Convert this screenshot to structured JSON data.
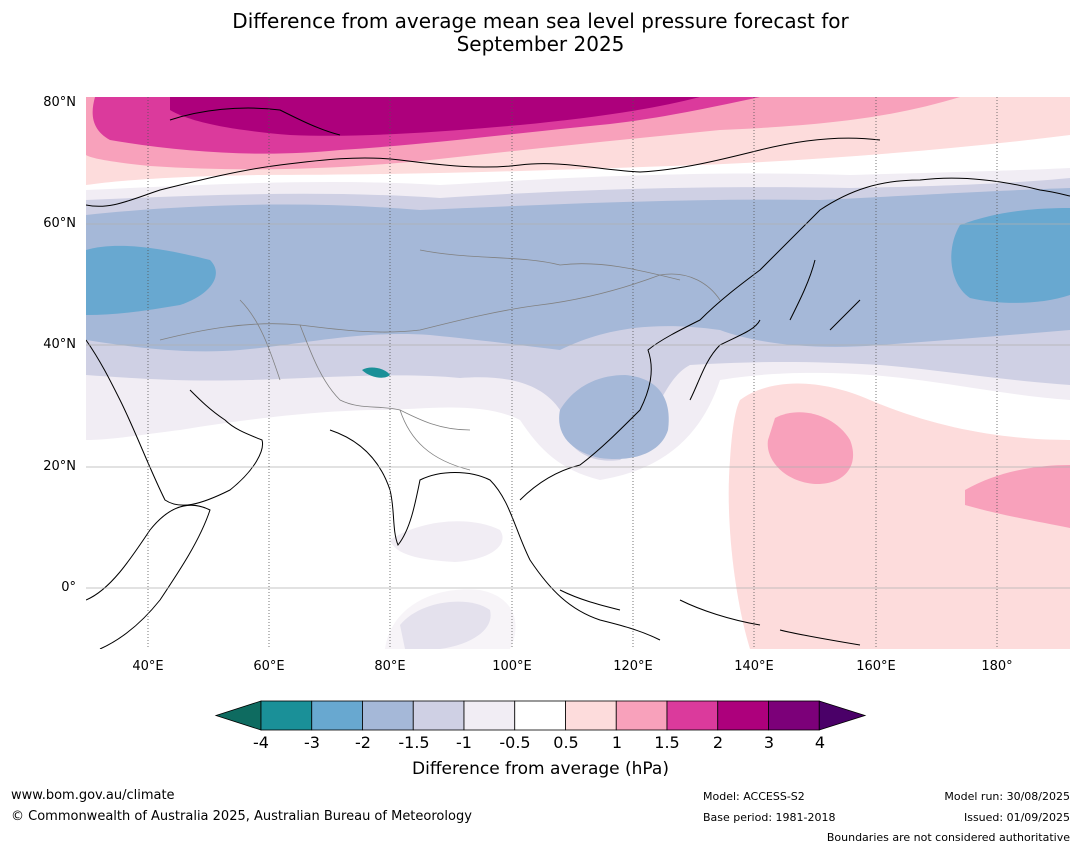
{
  "title_line1": "Difference from average mean sea level pressure forecast for",
  "title_line2": "September 2025",
  "lat_labels": [
    "80°N",
    "60°N",
    "40°N",
    "20°N",
    "0°"
  ],
  "lon_labels": [
    "40°E",
    "60°E",
    "80°E",
    "100°E",
    "120°E",
    "140°E",
    "160°E",
    "180°"
  ],
  "colorbar": {
    "ticks": [
      "-4",
      "-3",
      "-2",
      "-1.5",
      "-1",
      "-0.5",
      "0.5",
      "1",
      "1.5",
      "2",
      "3",
      "4"
    ],
    "colors": [
      "#0e6b60",
      "#1a9098",
      "#68a8d0",
      "#a5b8d8",
      "#cfd0e4",
      "#f1edf4",
      "#ffffff",
      "#fddcdc",
      "#f8a1bb",
      "#db3a9c",
      "#ad007c",
      "#7c0079",
      "#4a0068"
    ],
    "label": "Difference from average (hPa)"
  },
  "footer": {
    "url": "www.bom.gov.au/climate",
    "copyright": "© Commonwealth of Australia 2025, Australian Bureau of Meteorology",
    "model": "Model: ACCESS-S2",
    "base_period": "Base period: 1981-2018",
    "model_run": "Model run: 30/08/2025",
    "issued": "Issued: 01/09/2025",
    "disclaimer": "Boundaries are not considered authoritative"
  }
}
